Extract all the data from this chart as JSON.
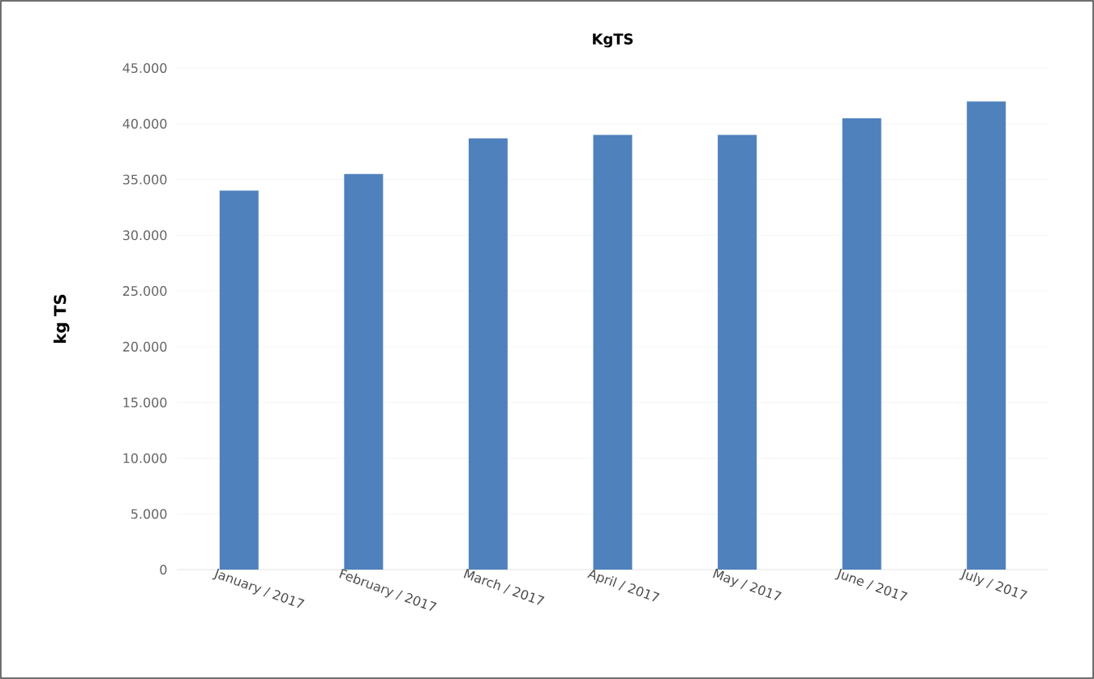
{
  "chart_data": {
    "type": "bar",
    "title": "KgTS",
    "ylabel": "kg TS",
    "categories": [
      "January / 2017",
      "February / 2017",
      "March / 2017",
      "April / 2017",
      "May / 2017",
      "June / 2017",
      "July / 2017"
    ],
    "values": [
      34000,
      35500,
      38700,
      39000,
      39000,
      40500,
      42000
    ],
    "color": "#4f81bd",
    "ylim": [
      0,
      45000
    ],
    "yticks": [
      {
        "value": 0,
        "label": "0"
      },
      {
        "value": 5000,
        "label": "5.000"
      },
      {
        "value": 10000,
        "label": "10.000"
      },
      {
        "value": 15000,
        "label": "15.000"
      },
      {
        "value": 20000,
        "label": "20.000"
      },
      {
        "value": 25000,
        "label": "25.000"
      },
      {
        "value": 30000,
        "label": "30.000"
      },
      {
        "value": 35000,
        "label": "35.000"
      },
      {
        "value": 40000,
        "label": "40.000"
      },
      {
        "value": 45000,
        "label": "45.000"
      }
    ],
    "grid": "y"
  }
}
